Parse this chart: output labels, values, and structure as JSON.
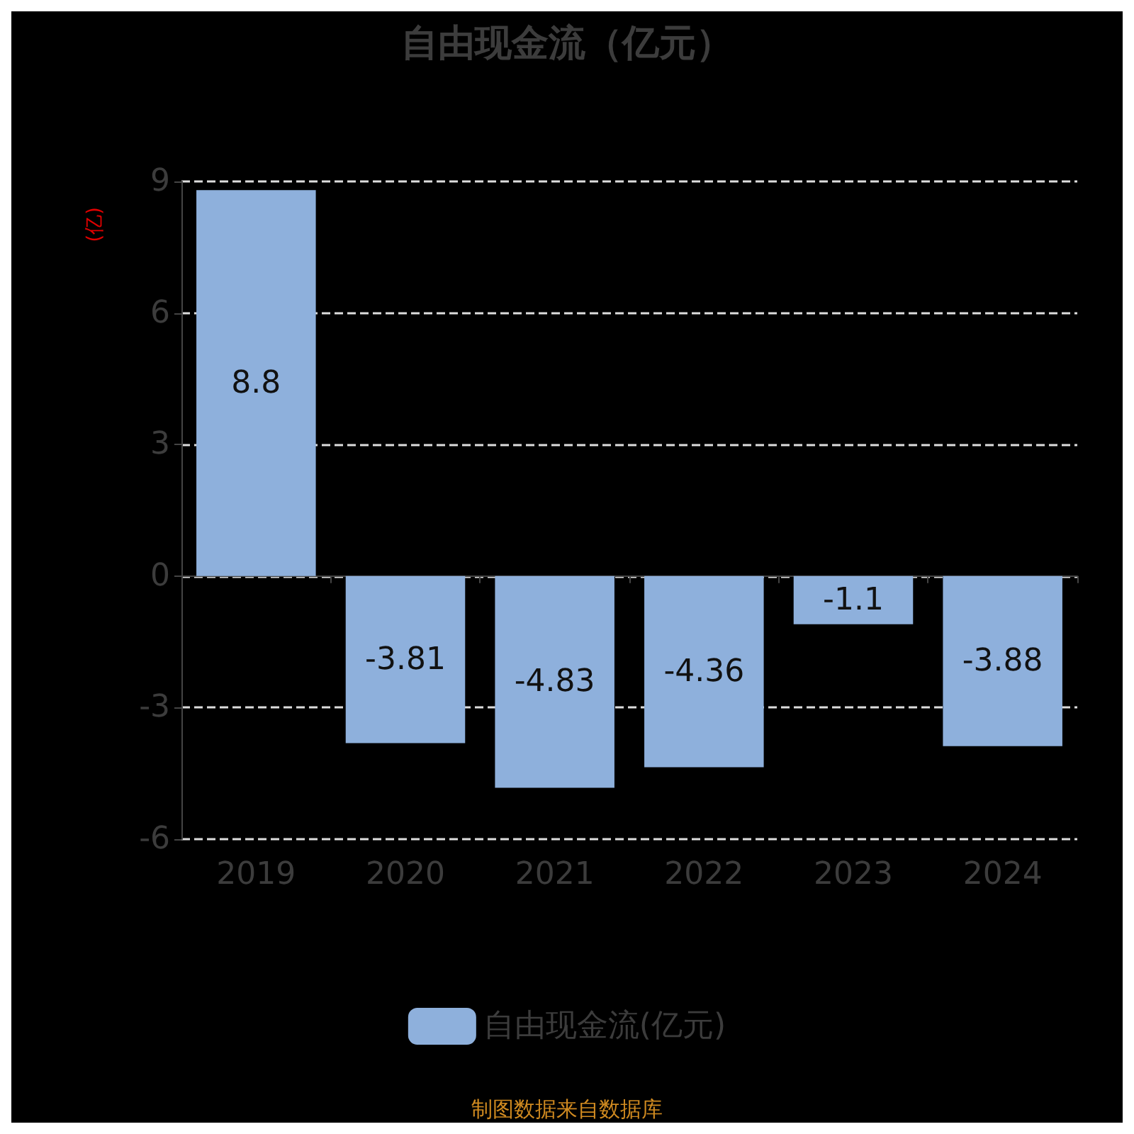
{
  "chart_data": {
    "type": "bar",
    "title": "自由现金流（亿元）",
    "ylabel": "(亿)",
    "categories": [
      "2019",
      "2020",
      "2021",
      "2022",
      "2023",
      "2024"
    ],
    "series": [
      {
        "name": "自由现金流(亿元)",
        "color": "#8eb0dc",
        "values": [
          8.8,
          -3.81,
          -4.83,
          -4.36,
          -1.1,
          -3.88
        ]
      }
    ],
    "ylim": [
      -6,
      9
    ],
    "yticks": [
      -6,
      -3,
      0,
      3,
      6,
      9
    ],
    "grid": "y",
    "legend": "bottom",
    "data_labels": true,
    "annotations": [
      "制图数据来自数据库"
    ]
  }
}
